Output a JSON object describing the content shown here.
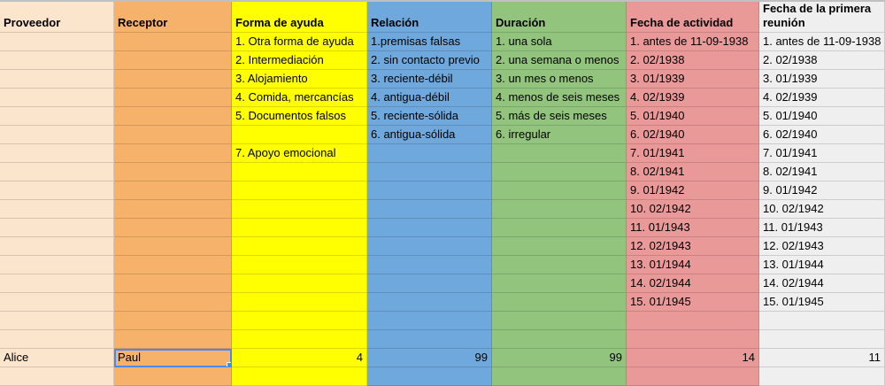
{
  "columns": [
    {
      "header": "Proveedor",
      "color": "#fce5cd",
      "items": [],
      "value": "Alice"
    },
    {
      "header": "Receptor",
      "color": "#f6b26b",
      "items": [],
      "value": "Paul"
    },
    {
      "header": "Forma de ayuda",
      "color": "#ffff00",
      "items": [
        "1. Otra forma de ayuda",
        "2. Intermediación",
        "3. Alojamiento",
        "4. Comida, mercancías",
        "5. Documentos falsos",
        "",
        "7. Apoyo emocional"
      ],
      "value": "4"
    },
    {
      "header": "Relación",
      "color": "#6fa8dc",
      "items": [
        "1.premisas falsas",
        "2. sin contacto previo",
        "3. reciente-débil",
        "4. antigua-débil",
        "5. reciente-sólida",
        "6. antigua-sólida"
      ],
      "value": "99"
    },
    {
      "header": "Duración",
      "color": "#93c47d",
      "items": [
        "1. una sola",
        "2. una semana o menos",
        "3. un mes o menos",
        "4. menos de seis meses",
        "5. más de seis meses",
        "6. irregular"
      ],
      "value": "99"
    },
    {
      "header": "Fecha de actividad",
      "color": "#ea9999",
      "items": [
        "1. antes de 11-09-1938",
        "2. 02/1938",
        "3. 01/1939",
        "4. 02/1939",
        "5. 01/1940",
        "6. 02/1940",
        "7. 01/1941",
        "8. 02/1941",
        "9. 01/1942",
        "10. 02/1942",
        "11. 01/1943",
        "12. 02/1943",
        "13. 01/1944",
        "14. 02/1944",
        "15. 01/1945"
      ],
      "value": "14"
    },
    {
      "header": "Fecha de la primera reunión",
      "color": "#efefef",
      "items": [
        "1. antes de 11-09-1938",
        "2. 02/1938",
        "3. 01/1939",
        "4. 02/1939",
        "5. 01/1940",
        "6. 02/1940",
        "7. 01/1941",
        "8. 02/1941",
        "9. 01/1942",
        "10. 02/1942",
        "11. 01/1943",
        "12. 02/1943",
        "13. 01/1944",
        "14. 02/1944",
        "15. 01/1945"
      ],
      "value": "11"
    }
  ],
  "selected_cell": "Paul"
}
